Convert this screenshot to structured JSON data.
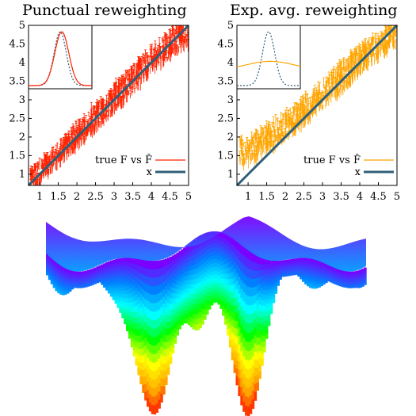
{
  "chart_data": [
    {
      "type": "scatter",
      "title": "Punctual reweighting",
      "xlim": [
        0.7,
        5
      ],
      "ylim": [
        0.7,
        5
      ],
      "xticks": [
        "1",
        "1.5",
        "2",
        "2.5",
        "3",
        "3.5",
        "4",
        "4.5",
        "5"
      ],
      "yticks": [
        "1",
        "1.5",
        "2",
        "2.5",
        "3",
        "3.5",
        "4",
        "4.5",
        "5"
      ],
      "legend": {
        "placement": "bottom-right",
        "items": [
          "true F vs F̂",
          "x"
        ]
      },
      "colors": {
        "points": "#ff2200",
        "line": "#2f5f78"
      },
      "series": [
        {
          "name": "true F vs F̂",
          "style": "errorbars",
          "x": [
            0.9,
            1.2,
            1.5,
            1.8,
            2.1,
            2.4,
            2.7,
            3.0,
            3.3,
            3.6,
            3.9,
            4.2,
            4.5,
            4.8
          ],
          "y": [
            0.95,
            1.25,
            1.5,
            1.85,
            2.1,
            2.45,
            2.7,
            3.05,
            3.3,
            3.6,
            3.95,
            4.15,
            4.5,
            4.75
          ],
          "err": [
            0.25,
            0.25,
            0.3,
            0.3,
            0.3,
            0.35,
            0.35,
            0.35,
            0.35,
            0.35,
            0.35,
            0.35,
            0.35,
            0.35
          ]
        },
        {
          "name": "x",
          "style": "line",
          "x": [
            0.7,
            5
          ],
          "y": [
            0.7,
            5
          ]
        }
      ],
      "inset": {
        "curves": [
          {
            "style": "dashed",
            "color": "#2f5f78",
            "peak": 1.5,
            "width": 0.35
          },
          {
            "style": "solid",
            "color": "#ff2200",
            "peak": 1.55,
            "width": 0.4
          }
        ]
      }
    },
    {
      "type": "scatter",
      "title": "Exp. avg. reweighting",
      "xlim": [
        0.7,
        5
      ],
      "ylim": [
        0.7,
        5
      ],
      "xticks": [
        "1",
        "1.5",
        "2",
        "2.5",
        "3",
        "3.5",
        "4",
        "4.5",
        "5"
      ],
      "yticks": [
        "1",
        "1.5",
        "2",
        "2.5",
        "3",
        "3.5",
        "4",
        "4.5",
        "5"
      ],
      "legend": {
        "placement": "bottom-right",
        "items": [
          "true F vs F̂",
          "x"
        ]
      },
      "colors": {
        "points": "#ffa500",
        "line": "#2f5f78"
      },
      "series": [
        {
          "name": "true F vs F̂",
          "style": "errorbars",
          "x": [
            1.0,
            1.3,
            1.6,
            1.9,
            2.2,
            2.5,
            2.8,
            3.1,
            3.4,
            3.7,
            4.0,
            4.3,
            4.6,
            4.9
          ],
          "y": [
            1.6,
            1.8,
            2.0,
            2.2,
            2.4,
            2.7,
            2.9,
            3.2,
            3.5,
            3.8,
            4.05,
            4.3,
            4.5,
            4.75
          ],
          "err": [
            0.35,
            0.35,
            0.35,
            0.35,
            0.35,
            0.35,
            0.35,
            0.35,
            0.4,
            0.4,
            0.35,
            0.3,
            0.3,
            0.3
          ]
        },
        {
          "name": "x",
          "style": "line",
          "x": [
            0.7,
            5
          ],
          "y": [
            0.7,
            5
          ]
        }
      ],
      "inset": {
        "curves": [
          {
            "style": "dashed",
            "color": "#2f5f78",
            "peak": 1.5,
            "width": 0.35
          },
          {
            "style": "solid",
            "color": "#ffa500",
            "peak": 1.55,
            "width": 1.4
          }
        ]
      }
    },
    {
      "type": "surface",
      "colormap": [
        "#ff0000",
        "#ffa500",
        "#ffff00",
        "#00ff00",
        "#00ffff",
        "#0080ff",
        "#7a00ff"
      ]
    }
  ]
}
